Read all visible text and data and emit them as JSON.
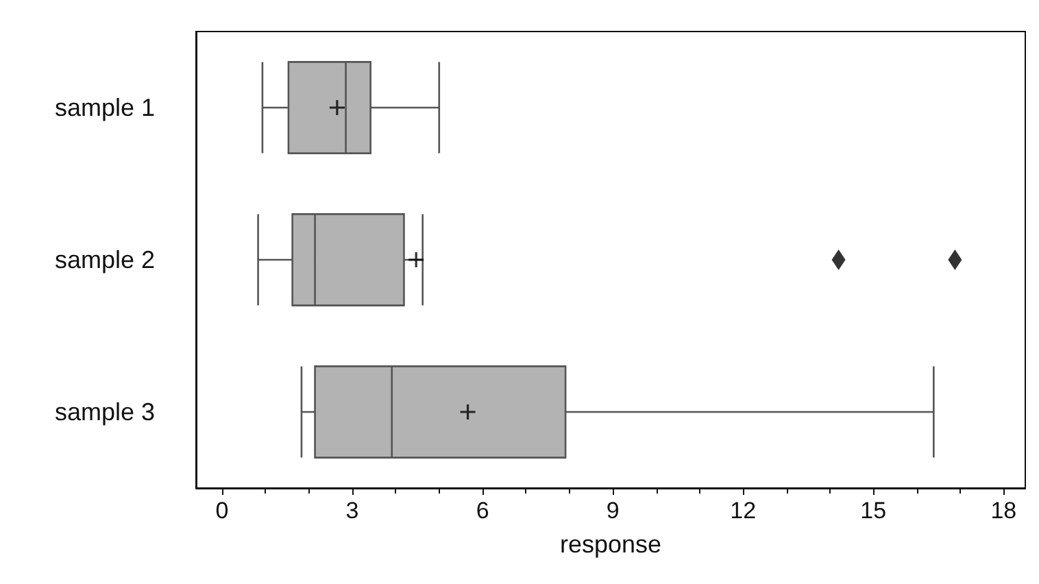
{
  "chart_data": {
    "type": "box",
    "orientation": "horizontal",
    "xlabel": "response",
    "categories": [
      "sample 1",
      "sample 2",
      "sample 3"
    ],
    "boxes": [
      {
        "low": 0.93,
        "q1": 1.53,
        "median": 2.85,
        "q3": 3.42,
        "high": 5.0,
        "mean": 2.65
      },
      {
        "low": 0.83,
        "q1": 1.62,
        "median": 2.14,
        "q3": 4.19,
        "high": 4.62,
        "mean": 4.47,
        "outliers": [
          14.2,
          16.88
        ]
      },
      {
        "low": 1.83,
        "q1": 2.14,
        "median": 3.91,
        "q3": 7.91,
        "high": 16.39,
        "mean": 5.66
      }
    ],
    "color": "#b3b3b3",
    "xlim": [
      -0.6,
      18.5
    ],
    "xticks": [
      0,
      3,
      6,
      9,
      12,
      15,
      18
    ],
    "grid": false
  }
}
